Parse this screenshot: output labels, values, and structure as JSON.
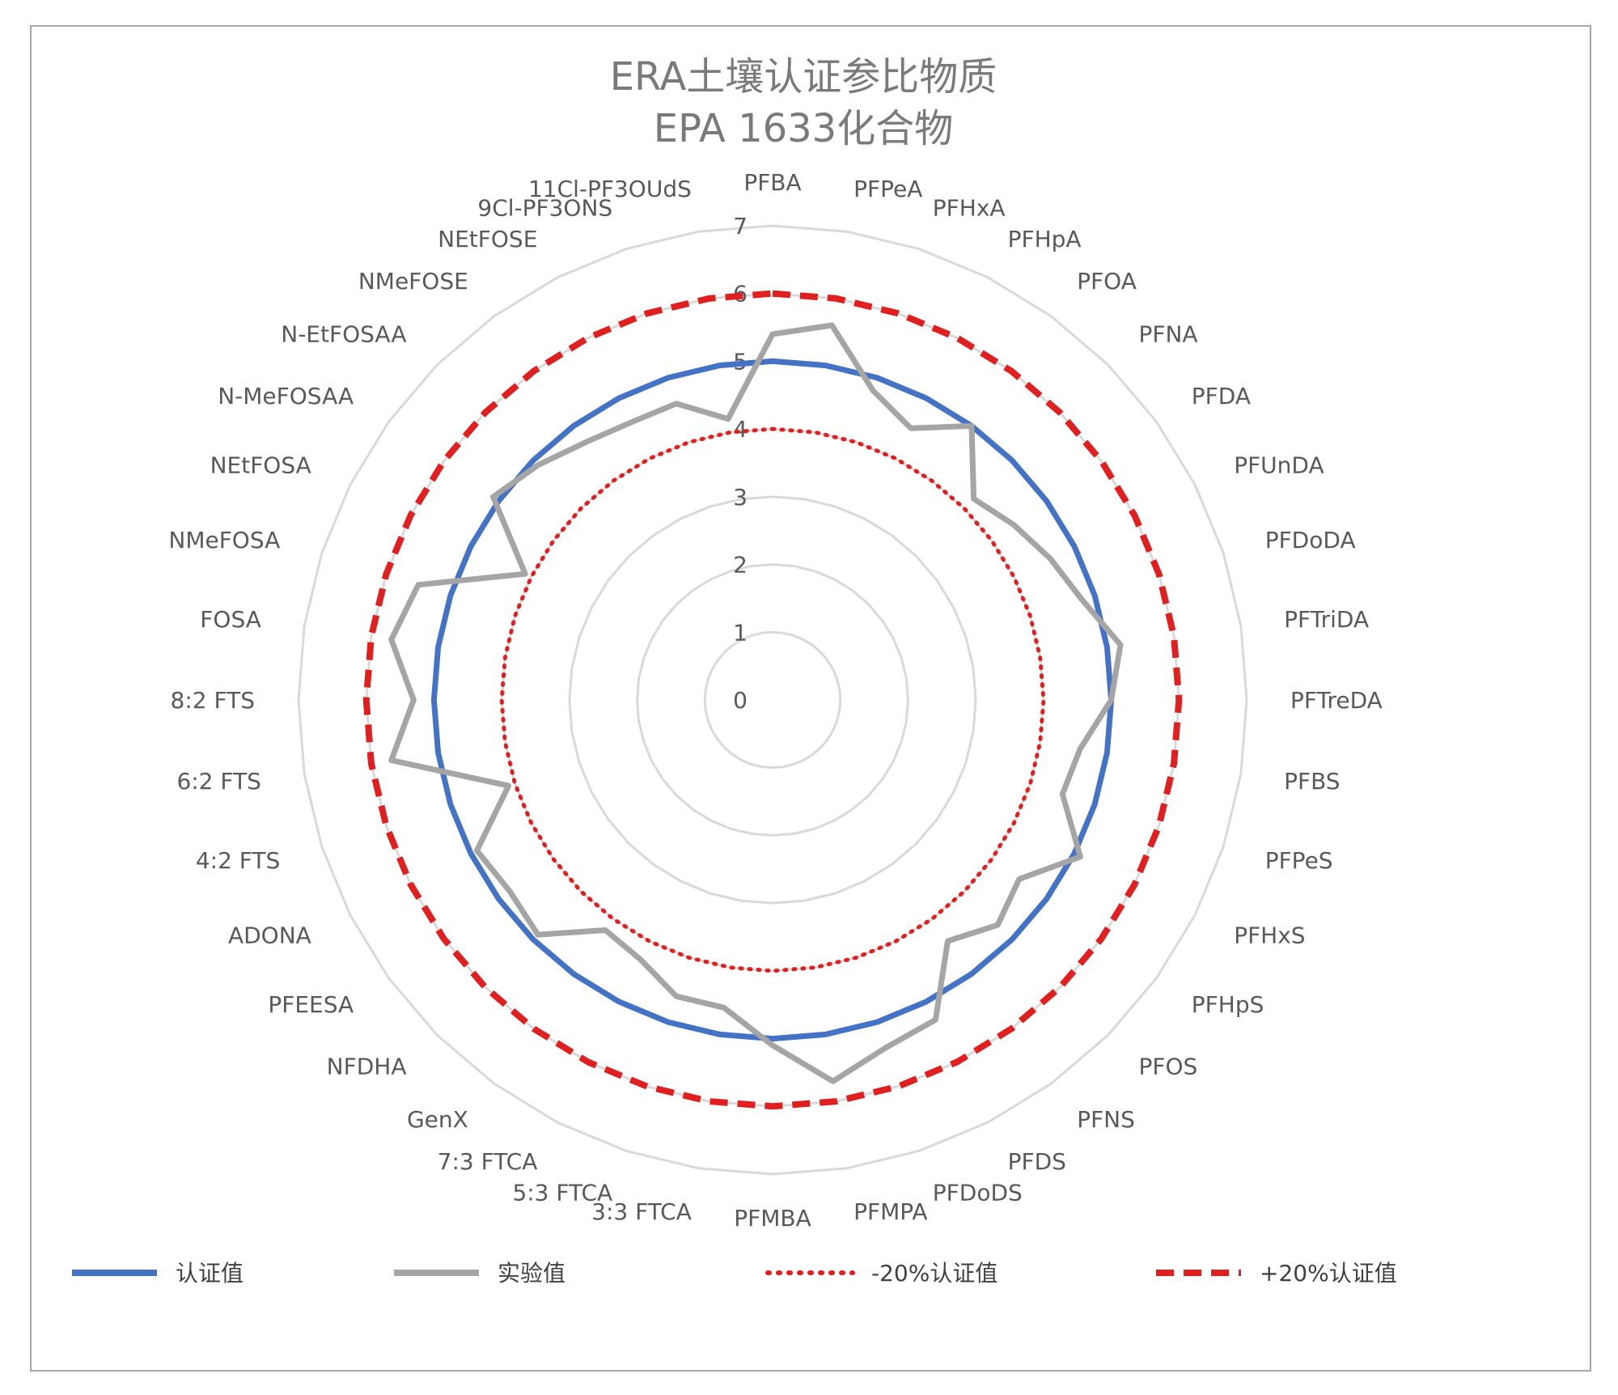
{
  "chart_data": {
    "type": "radar",
    "title_lines": [
      "ERA土壤认证参比物质",
      "EPA 1633化合物"
    ],
    "categories": [
      "PFBA",
      "PFPeA",
      "PFHxA",
      "PFHpA",
      "PFOA",
      "PFNA",
      "PFDA",
      "PFUnDA",
      "PFDoDA",
      "PFTriDA",
      "PFTreDA",
      "PFBS",
      "PFPeS",
      "PFHxS",
      "PFHpS",
      "PFOS",
      "PFNS",
      "PFDS",
      "PFDoDS",
      "PFMPA",
      "PFMBA",
      "3:3 FTCA",
      "5:3 FTCA",
      "7:3 FTCA",
      "GenX",
      "NFDHA",
      "PFEESA",
      "ADONA",
      "4:2 FTS",
      "6:2 FTS",
      "8:2 FTS",
      "FOSA",
      "NMeFOSA",
      "NEtFOSA",
      "N-MeFOSAA",
      "N-EtFOSAA",
      "NMeFOSE",
      "NEtFOSE",
      "9Cl-PF3ONS",
      "11Cl-PF3OUdS"
    ],
    "radial_ticks": [
      0,
      1,
      2,
      3,
      4,
      5,
      6,
      7
    ],
    "rlim": [
      0,
      7
    ],
    "grid": true,
    "legend_position": "bottom",
    "series": [
      {
        "name": "认证值",
        "style": "solid",
        "color": "#4472c4",
        "values": [
          5,
          5,
          5,
          5,
          5,
          5,
          5,
          5,
          5,
          5,
          5,
          5,
          5,
          5,
          5,
          5,
          5,
          5,
          5,
          5,
          5,
          5,
          5,
          5,
          5,
          5,
          5,
          5,
          5,
          5,
          5,
          5,
          5,
          5,
          5,
          5,
          5,
          5,
          5,
          5
        ]
      },
      {
        "name": "实验值",
        "style": "solid",
        "color": "#a5a5a5",
        "values": [
          5.4,
          5.6,
          4.8,
          4.5,
          5.0,
          4.2,
          4.4,
          4.6,
          4.8,
          5.2,
          5.0,
          4.6,
          4.5,
          5.1,
          4.5,
          4.7,
          4.4,
          5.3,
          5.4,
          5.7,
          5.1,
          4.6,
          4.6,
          4.3,
          4.2,
          4.9,
          4.8,
          4.9,
          4.1,
          5.7,
          5.3,
          5.7,
          5.5,
          4.1,
          5.1,
          4.9,
          4.7,
          4.6,
          4.6,
          4.2
        ]
      },
      {
        "name": "-20%认证值",
        "style": "dotted",
        "color": "#e02020",
        "values": [
          4,
          4,
          4,
          4,
          4,
          4,
          4,
          4,
          4,
          4,
          4,
          4,
          4,
          4,
          4,
          4,
          4,
          4,
          4,
          4,
          4,
          4,
          4,
          4,
          4,
          4,
          4,
          4,
          4,
          4,
          4,
          4,
          4,
          4,
          4,
          4,
          4,
          4,
          4,
          4
        ]
      },
      {
        "name": "+20%认证值",
        "style": "dashed",
        "color": "#e02020",
        "values": [
          6,
          6,
          6,
          6,
          6,
          6,
          6,
          6,
          6,
          6,
          6,
          6,
          6,
          6,
          6,
          6,
          6,
          6,
          6,
          6,
          6,
          6,
          6,
          6,
          6,
          6,
          6,
          6,
          6,
          6,
          6,
          6,
          6,
          6,
          6,
          6,
          6,
          6,
          6,
          6
        ]
      }
    ]
  }
}
